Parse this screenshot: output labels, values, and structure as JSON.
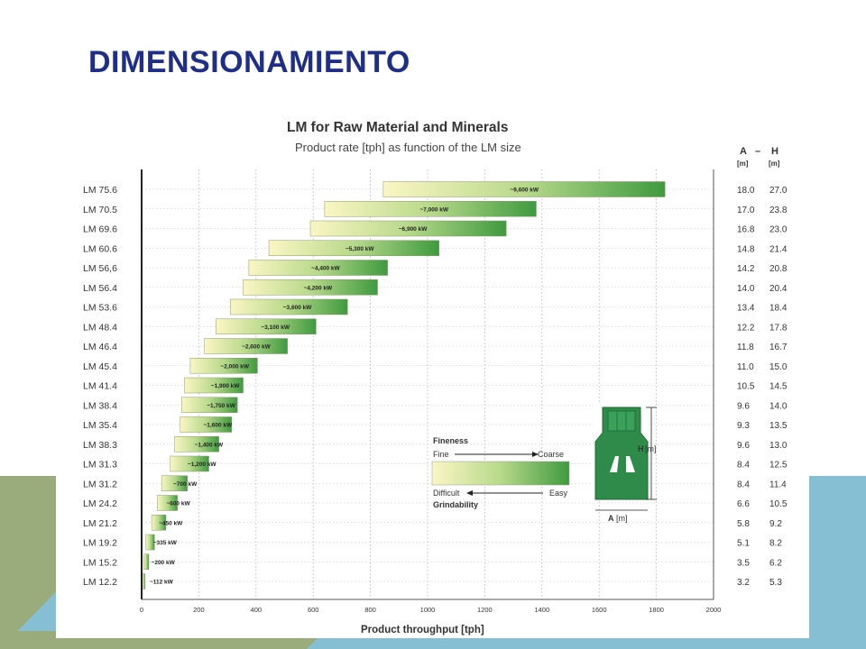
{
  "slide": {
    "title": "DIMENSIONAMIENTO",
    "colors": {
      "title": "#1f2e86",
      "deco_green": "#9aac7c",
      "deco_blue": "#86bfd3"
    }
  },
  "chart_data": {
    "type": "bar",
    "title": "LM for Raw Material and Minerals",
    "subtitle": "Product rate [tph] as function of the LM size",
    "xlabel": "Product throughput [tph]",
    "xlim": [
      0,
      2000
    ],
    "xticks": [
      "0",
      "200",
      "400",
      "600",
      "800",
      "1000",
      "1200",
      "1400",
      "1600",
      "1800",
      "2000"
    ],
    "grid": true,
    "categories": [
      "LM 75.6",
      "LM 70.5",
      "LM 69.6",
      "LM 60.6",
      "LM 56,6",
      "LM 56.4",
      "LM 53.6",
      "LM 48.4",
      "LM 46.4",
      "LM 45.4",
      "LM 41.4",
      "LM 38.4",
      "LM 35.4",
      "LM 38.3",
      "LM 31.3",
      "LM 31.2",
      "LM 24.2",
      "LM 21.2",
      "LM 19.2",
      "LM 15.2",
      "LM 12.2"
    ],
    "ranges": [
      [
        845,
        1830
      ],
      [
        640,
        1380
      ],
      [
        590,
        1275
      ],
      [
        445,
        1040
      ],
      [
        375,
        860
      ],
      [
        355,
        825
      ],
      [
        310,
        720
      ],
      [
        260,
        610
      ],
      [
        220,
        510
      ],
      [
        170,
        405
      ],
      [
        150,
        355
      ],
      [
        140,
        335
      ],
      [
        135,
        315
      ],
      [
        115,
        270
      ],
      [
        100,
        235
      ],
      [
        70,
        160
      ],
      [
        55,
        125
      ],
      [
        35,
        85
      ],
      [
        15,
        45
      ],
      [
        8,
        25
      ],
      [
        3,
        12
      ]
    ],
    "power_labels": [
      "~9,600 kW",
      "~7,000 kW",
      "~6,900 kW",
      "~5,300 kW",
      "~4,400 kW",
      "~4,200 kW",
      "~3,600 kW",
      "~3,100 kW",
      "~2,600 kW",
      "~2,000 kW",
      "~1,900 kW",
      "~1,750 kW",
      "~1,600 kW",
      "~1,400 kW",
      "~1,200 kW",
      "~700 kW",
      "~600 kW",
      "~450 kW",
      "~335 kW",
      "~200 kW",
      "~112 kW"
    ],
    "dimensions": {
      "header_a": "A",
      "header_dash": "–",
      "header_h": "H",
      "unit_a": "[m]",
      "unit_h": "[m]",
      "A": [
        "18.0",
        "17.0",
        "16.8",
        "14.8",
        "14.2",
        "14.0",
        "13.4",
        "12.2",
        "11.8",
        "11.0",
        "10.5",
        "9.6",
        "9.3",
        "9.6",
        "8.4",
        "8.4",
        "6.6",
        "5.8",
        "5.1",
        "3.5",
        "3.2"
      ],
      "H": [
        "27.0",
        "23.8",
        "23.0",
        "21.4",
        "20.8",
        "20.4",
        "18.4",
        "17.8",
        "16.7",
        "15.0",
        "14.5",
        "14.0",
        "13.5",
        "13.0",
        "12.5",
        "11.4",
        "10.5",
        "9.2",
        "8.2",
        "6.2",
        "5.3"
      ]
    },
    "legend": {
      "fineness": "Fineness",
      "fine": "Fine",
      "coarse": "Coarse",
      "difficult": "Difficult",
      "easy": "Easy",
      "grindability": "Grindability"
    },
    "mill_diagram": {
      "h_label": "H",
      "h_unit": "[m]",
      "a_label": "A",
      "a_unit": "[m]"
    },
    "colors": {
      "bar_light": "#fbf6c4",
      "bar_dark": "#3f9a3f",
      "mill": "#2e8b4a"
    }
  }
}
